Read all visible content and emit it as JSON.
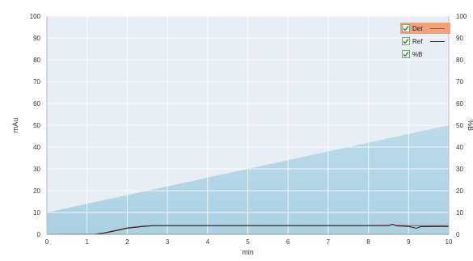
{
  "colors": {
    "plot_background": "#e9eef5",
    "grid": "#ffffff",
    "gradient_fill": "#a9cfe3",
    "gradient_edge": "#b9d9ea",
    "det_line": "#c0392b",
    "ref_line": "#222222",
    "legend_active_bg": "#f0a27d",
    "check": "#3a8a3a"
  },
  "legend": {
    "items": [
      {
        "label": "Det",
        "checked": true,
        "active": true,
        "line_color": "#c0392b",
        "show_line": true
      },
      {
        "label": "Ref",
        "checked": true,
        "active": false,
        "line_color": "#222222",
        "show_line": true
      },
      {
        "label": "%B",
        "checked": true,
        "active": false,
        "line_color": "",
        "show_line": false
      }
    ]
  },
  "chart_data": {
    "type": "line",
    "xlabel": "min",
    "ylabel": "mAu",
    "y2label": "%B",
    "xlim": [
      0,
      10
    ],
    "ylim": [
      0,
      100
    ],
    "y2lim": [
      0,
      100
    ],
    "x_ticks": [
      "0",
      "1",
      "2",
      "3",
      "4",
      "5",
      "6",
      "7",
      "8",
      "9",
      "10"
    ],
    "y_ticks": [
      "0",
      "10",
      "20",
      "30",
      "40",
      "50",
      "60",
      "70",
      "80",
      "90",
      "100"
    ],
    "y2_ticks": [
      "0",
      "10",
      "20",
      "30",
      "40",
      "50",
      "60",
      "70",
      "80",
      "90",
      "100"
    ],
    "grid": true,
    "legend_position": "top-right",
    "series": [
      {
        "name": "%B",
        "axis": "right",
        "style": "area",
        "x": [
          0,
          10
        ],
        "y": [
          10,
          50
        ]
      },
      {
        "name": "Det",
        "axis": "left",
        "style": "line",
        "x": [
          0,
          1.2,
          1.4,
          1.6,
          1.8,
          2.0,
          2.2,
          2.4,
          2.6,
          2.7,
          3.0,
          5.0,
          8.0,
          8.5,
          8.6,
          8.7,
          9.0,
          10.0
        ],
        "y": [
          0,
          0.1,
          0.6,
          1.4,
          2.2,
          3.0,
          3.4,
          3.8,
          4.0,
          4.0,
          4.0,
          4.0,
          4.0,
          4.1,
          4.5,
          4.1,
          4.0,
          4.0
        ]
      },
      {
        "name": "Ref",
        "axis": "left",
        "style": "line",
        "x": [
          0,
          1.2,
          1.4,
          1.6,
          1.8,
          2.0,
          2.2,
          2.4,
          2.6,
          2.7,
          3.0,
          5.0,
          8.0,
          8.5,
          8.6,
          8.7,
          9.0,
          9.2,
          9.3,
          10.0
        ],
        "y": [
          0,
          0.1,
          0.5,
          1.2,
          2.0,
          2.8,
          3.2,
          3.6,
          3.9,
          4.0,
          4.0,
          4.0,
          4.0,
          4.0,
          4.6,
          3.9,
          3.6,
          2.8,
          3.5,
          3.6
        ]
      }
    ]
  }
}
